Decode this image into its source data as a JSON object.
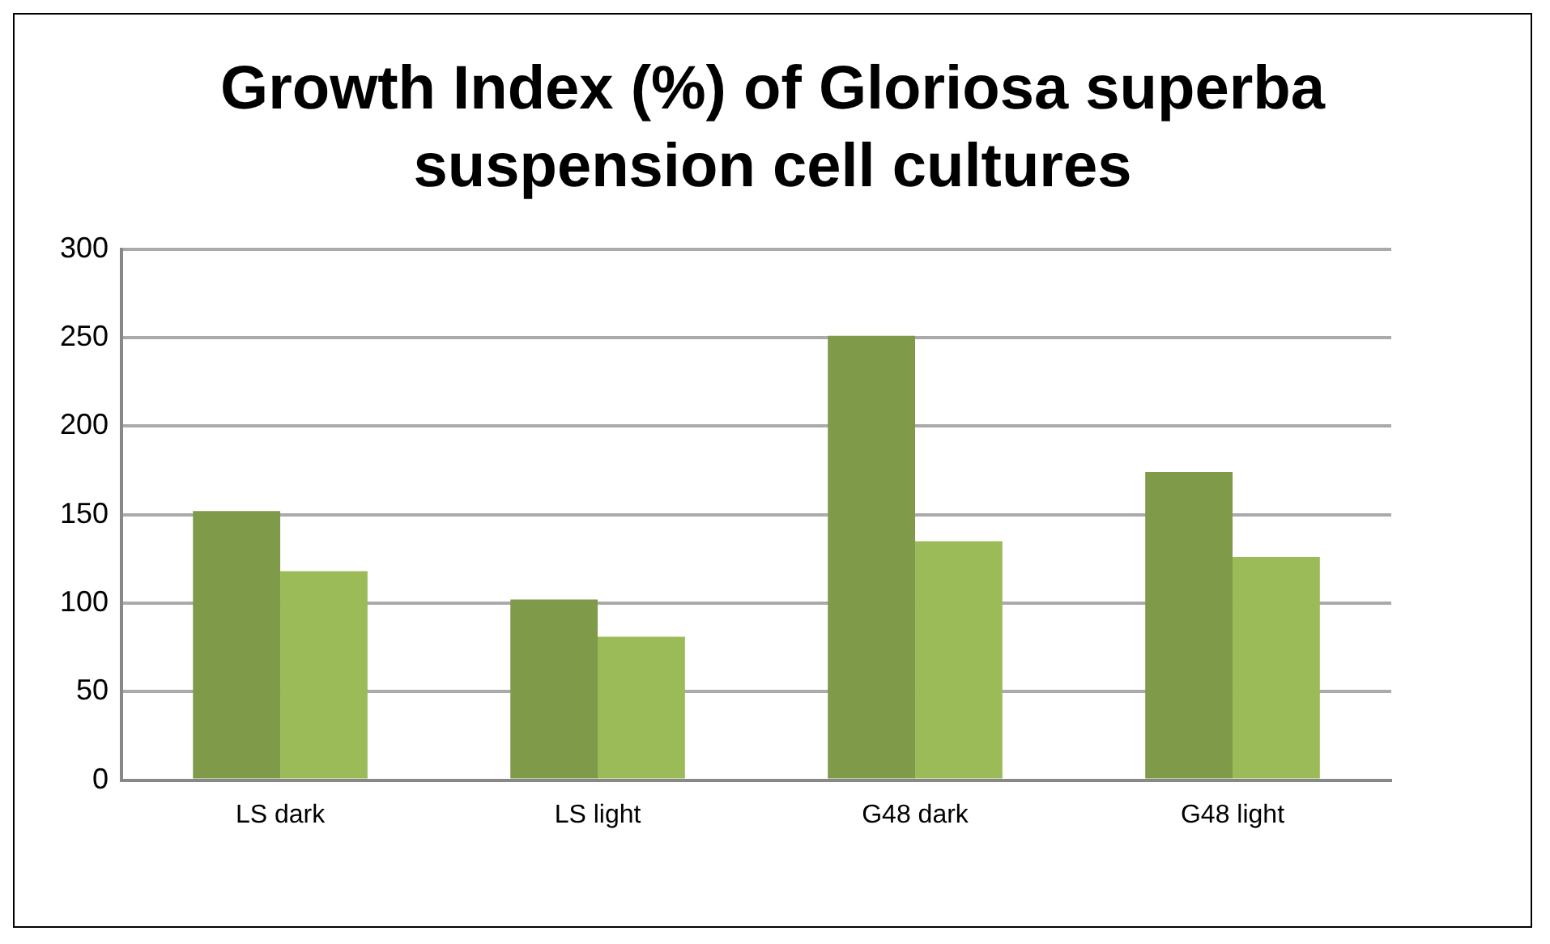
{
  "chart_data": {
    "type": "bar",
    "title": "Growth Index (%) of Gloriosa superba suspension cell cultures",
    "categories": [
      "LS dark",
      "LS light",
      "G48 dark",
      "G48 light"
    ],
    "series": [
      {
        "color": "#7f9a48",
        "values": [
          152,
          102,
          251,
          174
        ]
      },
      {
        "color": "#9bbb59",
        "values": [
          118,
          81,
          135,
          126
        ]
      }
    ],
    "ylim": [
      0,
      300
    ],
    "yticks": [
      0,
      50,
      100,
      150,
      200,
      250,
      300
    ],
    "grid": "y",
    "legend": false
  }
}
